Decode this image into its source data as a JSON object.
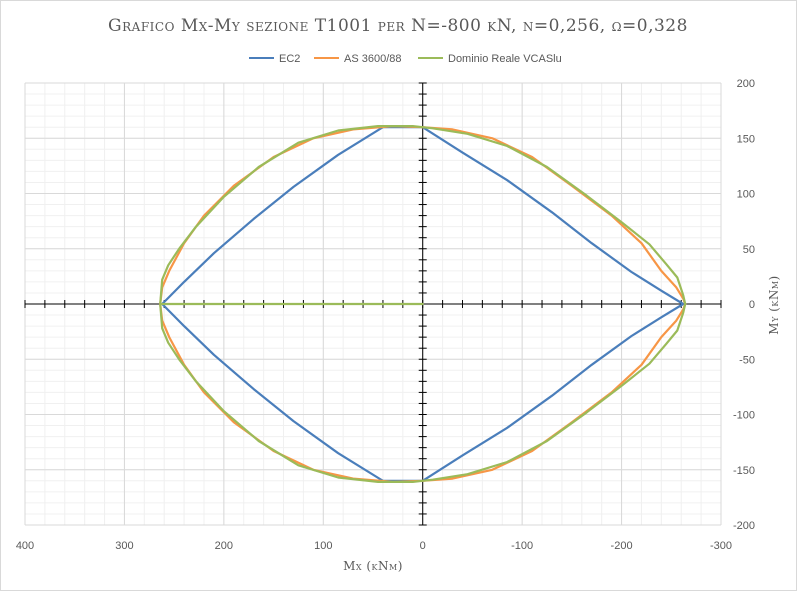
{
  "chart_data": {
    "type": "line",
    "title": "Grafico Mx-My sezione T1001 per N=-800 kN, ν=0,256, ω=0,328",
    "xlabel": "Mx (kNm)",
    "ylabel": "My (kNm)",
    "xlim": [
      400,
      -300
    ],
    "ylim": [
      -200,
      200
    ],
    "x_ticks": [
      400,
      300,
      200,
      100,
      0,
      -100,
      -200,
      -300
    ],
    "y_ticks": [
      -200,
      -150,
      -100,
      -50,
      0,
      50,
      100,
      150,
      200
    ],
    "x_tick_labels": [
      "400",
      "300",
      "200",
      "100",
      "0",
      "-100",
      "-200",
      "-300"
    ],
    "y_tick_labels": [
      "-200",
      "-150",
      "-100",
      "-50",
      "0",
      "50",
      "100",
      "150",
      "200"
    ],
    "grid": true,
    "legend_position": "top",
    "series": [
      {
        "name": "EC2",
        "color": "#4a7ebb",
        "x": [
          262,
          240,
          210,
          170,
          130,
          85,
          40,
          0,
          -40,
          -85,
          -130,
          -170,
          -210,
          -240,
          -262,
          -240,
          -210,
          -170,
          -130,
          -85,
          -40,
          0,
          40,
          85,
          130,
          170,
          210,
          240,
          262
        ],
        "y": [
          0,
          20,
          46,
          77,
          106,
          135,
          160,
          160,
          137,
          112,
          83,
          55,
          29,
          12,
          0,
          -12,
          -29,
          -55,
          -83,
          -112,
          -137,
          -160,
          -160,
          -135,
          -106,
          -77,
          -46,
          -20,
          0
        ]
      },
      {
        "name": "AS 3600/88",
        "color": "#f79646",
        "x": [
          264,
          262,
          255,
          240,
          220,
          190,
          150,
          110,
          70,
          30,
          0,
          -30,
          -70,
          -110,
          -150,
          -190,
          -220,
          -240,
          -255,
          -262,
          -264,
          -262,
          -255,
          -240,
          -220,
          -190,
          -150,
          -110,
          -70,
          -30,
          0,
          30,
          70,
          110,
          150,
          190,
          220,
          240,
          255,
          262,
          264
        ],
        "y": [
          0,
          15,
          30,
          55,
          80,
          107,
          133,
          150,
          158,
          161,
          160,
          158,
          150,
          133,
          107,
          80,
          55,
          30,
          15,
          5,
          0,
          -5,
          -15,
          -30,
          -55,
          -80,
          -107,
          -133,
          -150,
          -158,
          -160,
          -161,
          -158,
          -150,
          -133,
          -107,
          -80,
          -55,
          -30,
          -15,
          0
        ]
      },
      {
        "name": "Dominio Reale VCASlu",
        "color": "#9bbb59",
        "x": [
          264,
          262,
          256,
          245,
          228,
          200,
          165,
          125,
          85,
          45,
          10,
          0,
          -10,
          -45,
          -85,
          -125,
          -165,
          -200,
          -228,
          -245,
          -256,
          -262,
          -264,
          -262,
          -256,
          -245,
          -228,
          -200,
          -165,
          -125,
          -85,
          -45,
          -10,
          0,
          10,
          45,
          85,
          125,
          165,
          200,
          228,
          245,
          256,
          262,
          264,
          200,
          100,
          0
        ],
        "y": [
          0,
          22,
          35,
          50,
          70,
          97,
          124,
          146,
          157,
          161,
          161,
          160,
          159,
          154,
          143,
          124,
          98,
          74,
          54,
          36,
          24,
          8,
          0,
          -8,
          -24,
          -36,
          -54,
          -74,
          -98,
          -124,
          -143,
          -154,
          -159,
          -160,
          -161,
          -161,
          -157,
          -146,
          -124,
          -97,
          -70,
          -50,
          -35,
          -22,
          0,
          0,
          0,
          0
        ]
      }
    ]
  }
}
